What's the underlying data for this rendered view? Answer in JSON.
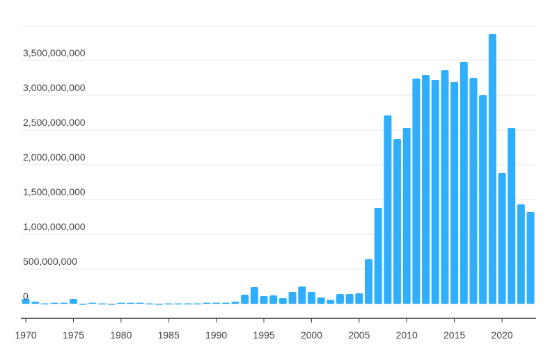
{
  "chart_data": {
    "type": "bar",
    "title": "",
    "xlabel": "",
    "ylabel": "",
    "ylim": [
      -210000000,
      4000000000
    ],
    "yticks": [
      0,
      500000000,
      1000000000,
      1500000000,
      2000000000,
      2500000000,
      3000000000,
      3500000000
    ],
    "ytick_labels": [
      "0",
      "500,000,000",
      "1,000,000,000",
      "1,500,000,000",
      "2,000,000,000",
      "2,500,000,000",
      "3,000,000,000",
      "3,500,000,000"
    ],
    "xticks": [
      "1970",
      "1975",
      "1980",
      "1985",
      "1990",
      "1995",
      "2000",
      "2005",
      "2010",
      "2015",
      "2020"
    ],
    "color": "#2eaefc",
    "categories": [
      1970,
      1971,
      1972,
      1973,
      1974,
      1975,
      1976,
      1977,
      1978,
      1979,
      1980,
      1981,
      1982,
      1983,
      1984,
      1985,
      1986,
      1987,
      1988,
      1989,
      1990,
      1991,
      1992,
      1993,
      1994,
      1995,
      1996,
      1997,
      1998,
      1999,
      2000,
      2001,
      2002,
      2003,
      2004,
      2005,
      2006,
      2007,
      2008,
      2009,
      2010,
      2011,
      2012,
      2013,
      2014,
      2015,
      2016,
      2017,
      2018,
      2019,
      2020,
      2021,
      2022,
      2023
    ],
    "values": [
      70000000,
      30000000,
      5000000,
      15000000,
      15000000,
      70000000,
      -15000000,
      15000000,
      5000000,
      0,
      15000000,
      15000000,
      15000000,
      5000000,
      0,
      5000000,
      5000000,
      5000000,
      5000000,
      15000000,
      15000000,
      15000000,
      30000000,
      130000000,
      240000000,
      110000000,
      120000000,
      80000000,
      170000000,
      247000000,
      170000000,
      90000000,
      55000000,
      140000000,
      140000000,
      150000000,
      640000000,
      1380000000,
      2710000000,
      2370000000,
      2530000000,
      3240000000,
      3290000000,
      3220000000,
      3360000000,
      3190000000,
      3480000000,
      3250000000,
      3000000000,
      3880000000,
      1880000000,
      2530000000,
      1430000000,
      1320000000
    ]
  }
}
